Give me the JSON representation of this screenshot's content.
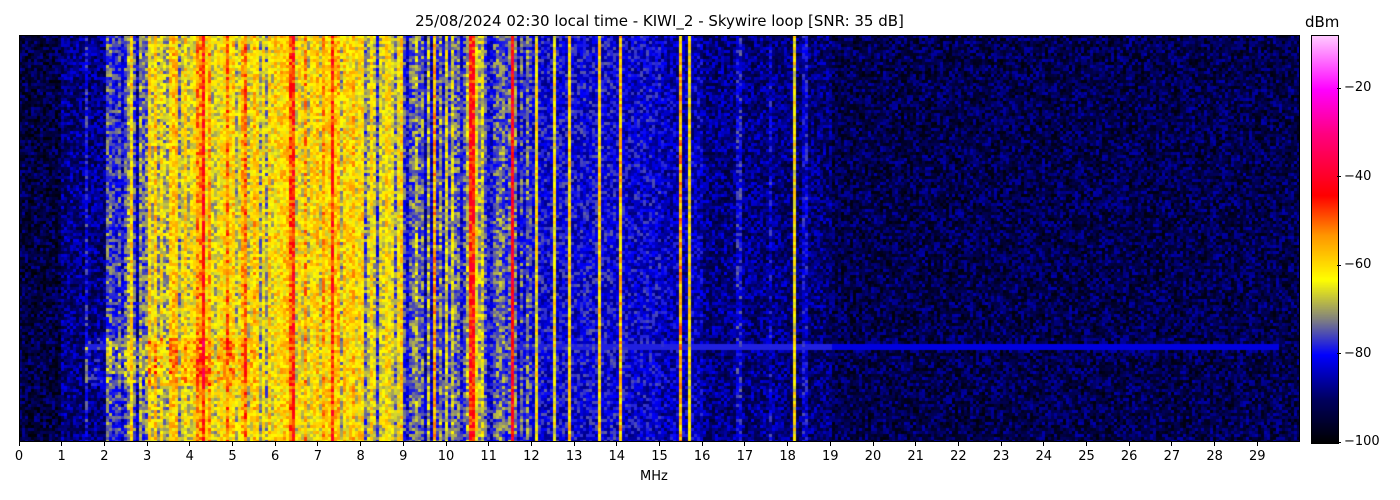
{
  "chart_data": {
    "type": "heatmap",
    "title": "25/08/2024 02:30 local time - KIWI_2 - Skywire loop [SNR: 35 dB]",
    "xlabel": "MHz",
    "xlim": [
      0,
      30
    ],
    "xticks": [
      0,
      1,
      2,
      3,
      4,
      5,
      6,
      7,
      8,
      9,
      10,
      11,
      12,
      13,
      14,
      15,
      16,
      17,
      18,
      19,
      20,
      21,
      22,
      23,
      24,
      25,
      26,
      27,
      28,
      29
    ],
    "colorbar": {
      "label": "dBm",
      "range": [
        -100,
        -8
      ],
      "ticks": [
        -100,
        -80,
        -60,
        -40,
        -20
      ],
      "colormap": [
        {
          "value": -100,
          "color": "#000000"
        },
        {
          "value": -90,
          "color": "#000060"
        },
        {
          "value": -80,
          "color": "#0000ff"
        },
        {
          "value": -72,
          "color": "#808080"
        },
        {
          "value": -63,
          "color": "#ffff00"
        },
        {
          "value": -53,
          "color": "#ff9600"
        },
        {
          "value": -44,
          "color": "#ff0000"
        },
        {
          "value": -30,
          "color": "#ff0080"
        },
        {
          "value": -20,
          "color": "#ff00ff"
        },
        {
          "value": -8,
          "color": "#ffc8ff"
        }
      ]
    },
    "mean_level_dbm_per_mhz": [
      -93,
      -88,
      -78,
      -64,
      -60,
      -63,
      -57,
      -60,
      -68,
      -76,
      -72,
      -76,
      -81,
      -81,
      -82,
      -84,
      -88,
      -88,
      -89,
      -92,
      -92,
      -92,
      -92,
      -92,
      -92,
      -92,
      -92,
      -92,
      -92,
      -92
    ],
    "carriers": [
      {
        "mhz": 1.55,
        "dbm": -80
      },
      {
        "mhz": 2.1,
        "dbm": -74
      },
      {
        "mhz": 2.65,
        "dbm": -60
      },
      {
        "mhz": 3.2,
        "dbm": -58
      },
      {
        "mhz": 4.3,
        "dbm": -45
      },
      {
        "mhz": 5.3,
        "dbm": -50
      },
      {
        "mhz": 6.4,
        "dbm": -45
      },
      {
        "mhz": 7.3,
        "dbm": -46
      },
      {
        "mhz": 8.6,
        "dbm": -60
      },
      {
        "mhz": 9.7,
        "dbm": -55
      },
      {
        "mhz": 10.6,
        "dbm": -45
      },
      {
        "mhz": 11.55,
        "dbm": -42
      },
      {
        "mhz": 12.1,
        "dbm": -62
      },
      {
        "mhz": 12.55,
        "dbm": -62
      },
      {
        "mhz": 12.9,
        "dbm": -60
      },
      {
        "mhz": 13.6,
        "dbm": -60
      },
      {
        "mhz": 14.05,
        "dbm": -58
      },
      {
        "mhz": 15.45,
        "dbm": -55
      },
      {
        "mhz": 15.7,
        "dbm": -62
      },
      {
        "mhz": 16.85,
        "dbm": -80
      },
      {
        "mhz": 17.6,
        "dbm": -82
      },
      {
        "mhz": 18.15,
        "dbm": -62
      },
      {
        "mhz": 18.4,
        "dbm": -82
      }
    ]
  }
}
